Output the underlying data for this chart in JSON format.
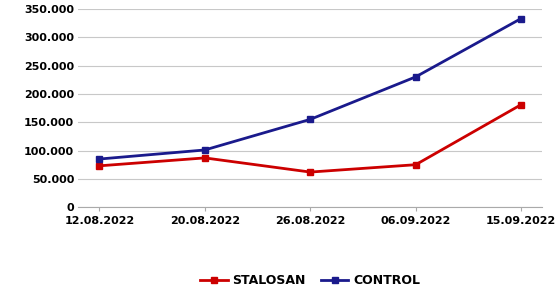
{
  "x_labels": [
    "12.08.2022",
    "20.08.2022",
    "26.08.2022",
    "06.09.2022",
    "15.09.2022"
  ],
  "stalosan_values": [
    73000,
    87000,
    62000,
    75000,
    181000
  ],
  "control_values": [
    85000,
    101000,
    155000,
    230000,
    333000
  ],
  "stalosan_color": "#cc0000",
  "control_color": "#1a1a8c",
  "ylim": [
    0,
    350000
  ],
  "yticks": [
    0,
    50000,
    100000,
    150000,
    200000,
    250000,
    300000,
    350000
  ],
  "ytick_labels": [
    "0",
    "50.000",
    "100.000",
    "150.000",
    "200.000",
    "250.000",
    "300.000",
    "350.000"
  ],
  "legend_stalosan": "STALOSAN",
  "legend_control": "CONTROL",
  "marker": "s",
  "linewidth": 2.0,
  "markersize": 5,
  "background_color": "#ffffff",
  "grid_color": "#c8c8c8",
  "tick_fontsize": 8,
  "legend_fontsize": 9
}
